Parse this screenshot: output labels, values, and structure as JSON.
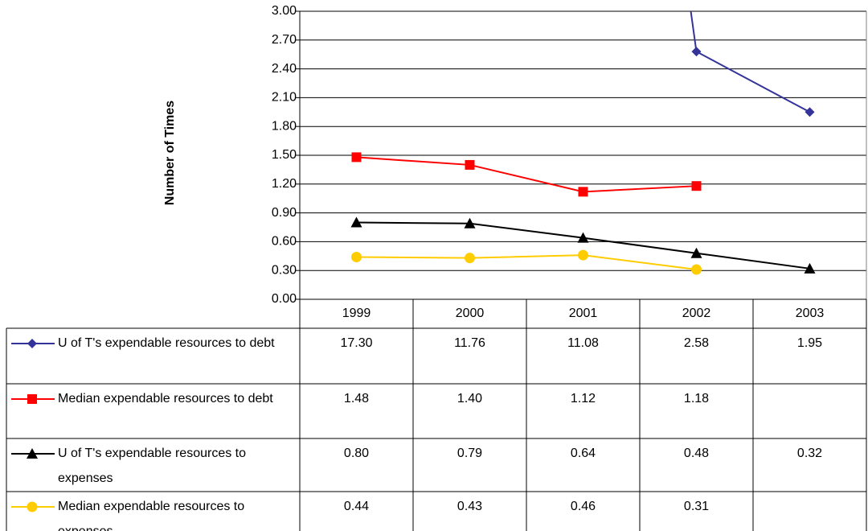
{
  "chart_data": {
    "type": "line",
    "y_label": "Number of Times",
    "categories": [
      "1999",
      "2000",
      "2001",
      "2002",
      "2003"
    ],
    "series": [
      {
        "name": "U of T's expendable resources to debt",
        "color": "#333399",
        "marker": "diamond",
        "values": [
          17.3,
          11.76,
          11.08,
          2.58,
          1.95
        ],
        "value_labels": [
          "17.30",
          "11.76",
          "11.08",
          "2.58",
          "1.95"
        ]
      },
      {
        "name": "Median expendable resources to debt",
        "color": "#ff0000",
        "marker": "square",
        "values": [
          1.48,
          1.4,
          1.12,
          1.18,
          null
        ],
        "value_labels": [
          "1.48",
          "1.40",
          "1.12",
          "1.18",
          null
        ]
      },
      {
        "name": "U of T's expendable resources to expenses",
        "color": "#000000",
        "marker": "triangle",
        "values": [
          0.8,
          0.79,
          0.64,
          0.48,
          0.32
        ],
        "value_labels": [
          "0.80",
          "0.79",
          "0.64",
          "0.48",
          "0.32"
        ]
      },
      {
        "name": "Median expendable resources to expenses",
        "color": "#ffcc00",
        "marker": "circle",
        "values": [
          0.44,
          0.43,
          0.46,
          0.31,
          null
        ],
        "value_labels": [
          "0.44",
          "0.43",
          "0.46",
          "0.31",
          null
        ]
      }
    ],
    "ylim": [
      0,
      3
    ],
    "yticks": [
      {
        "value": 0,
        "label": "0.00"
      },
      {
        "value": 0.3,
        "label": "0.30"
      },
      {
        "value": 0.6,
        "label": "0.60"
      },
      {
        "value": 0.9,
        "label": "0.90"
      },
      {
        "value": 1.2,
        "label": "1.20"
      },
      {
        "value": 1.5,
        "label": "1.50"
      },
      {
        "value": 1.8,
        "label": "1.80"
      },
      {
        "value": 2.1,
        "label": "2.10"
      },
      {
        "value": 2.4,
        "label": "2.40"
      },
      {
        "value": 2.7,
        "label": "2.70"
      },
      {
        "value": 3,
        "label": "3.00"
      }
    ],
    "grid": true
  }
}
